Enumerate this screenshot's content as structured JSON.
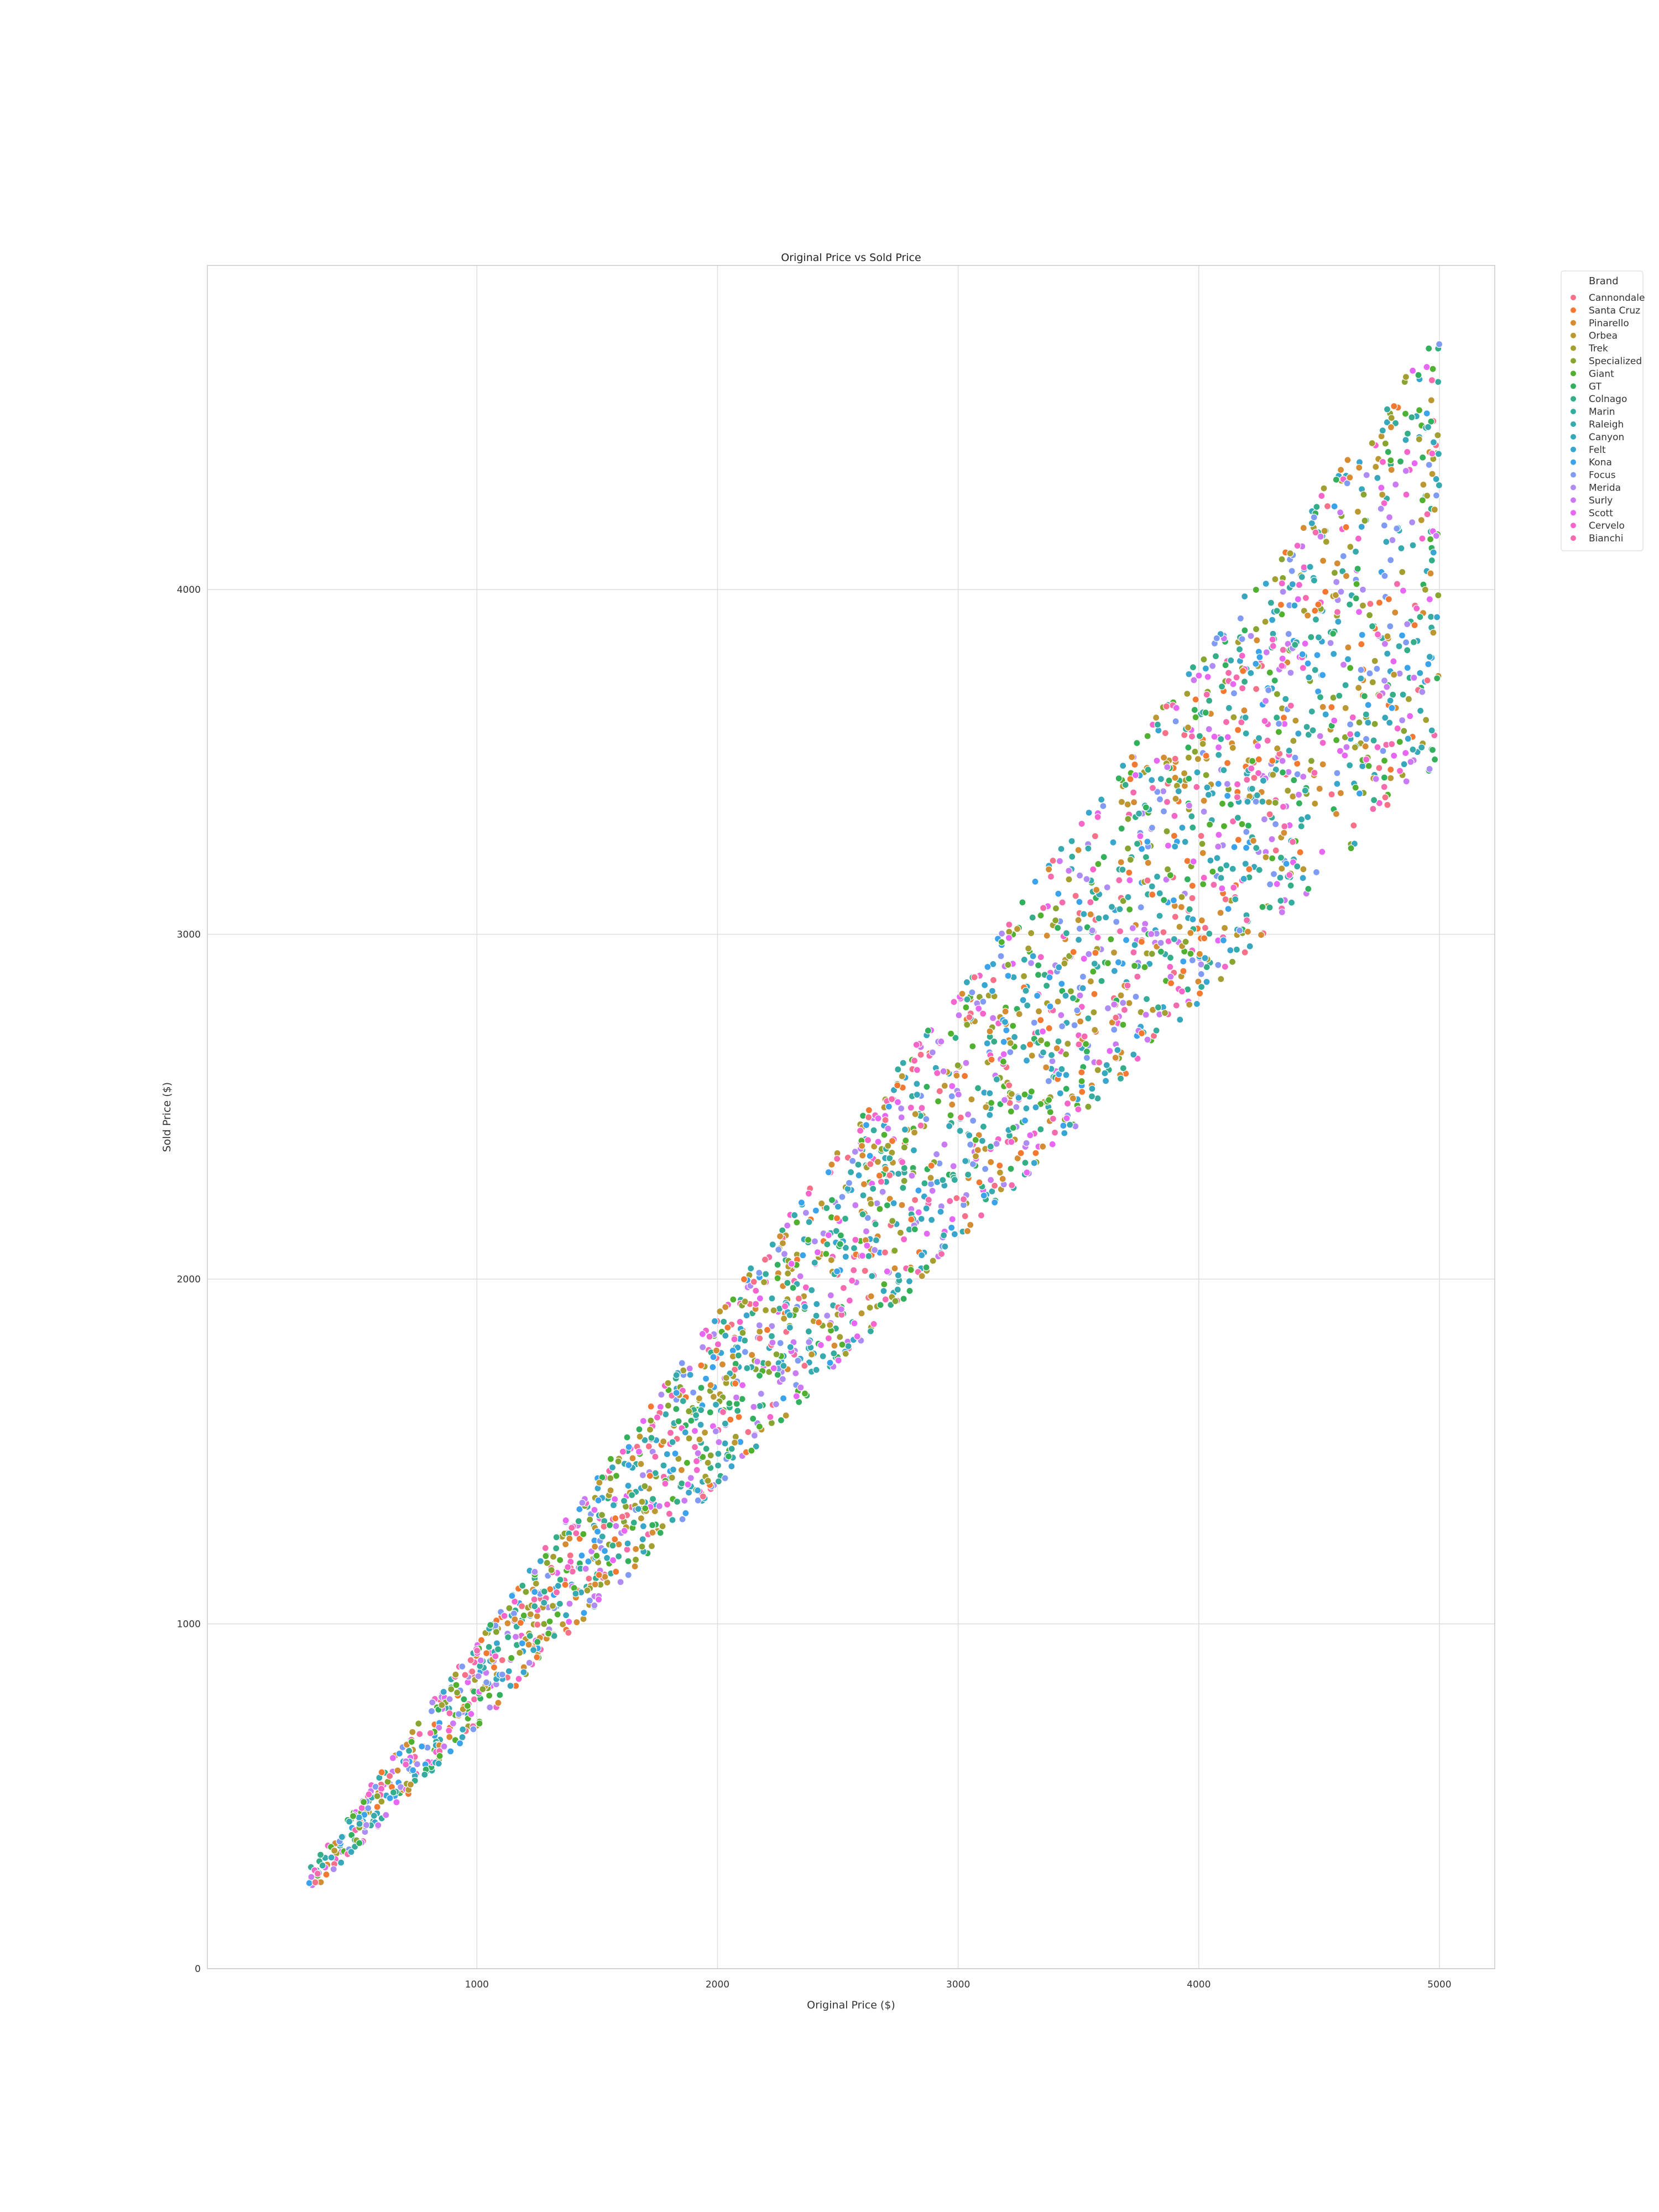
{
  "chart_data": {
    "type": "scatter",
    "title": "Original Price vs Sold Price",
    "xlabel": "Original Price ($)",
    "ylabel": "Sold Price ($)",
    "xlim": [
      -120,
      5230
    ],
    "ylim": [
      0,
      4940
    ],
    "xticks": [
      1000,
      2000,
      3000,
      4000,
      5000
    ],
    "yticks": [
      0,
      1000,
      2000,
      3000,
      4000
    ],
    "grid": true,
    "legend": {
      "title": "Brand",
      "placement": "outside-top-right"
    },
    "series": [
      {
        "name": "Cannondale",
        "color": "#f77189"
      },
      {
        "name": "Santa Cruz",
        "color": "#f37932"
      },
      {
        "name": "Pinarello",
        "color": "#d58c32"
      },
      {
        "name": "Orbea",
        "color": "#bb9832"
      },
      {
        "name": "Trek",
        "color": "#a39f31"
      },
      {
        "name": "Specialized",
        "color": "#88a431"
      },
      {
        "name": "Giant",
        "color": "#50b131"
      },
      {
        "name": "GT",
        "color": "#33b05e"
      },
      {
        "name": "Colnago",
        "color": "#34ae88"
      },
      {
        "name": "Marin",
        "color": "#35ac9e"
      },
      {
        "name": "Raleigh",
        "color": "#36aaad"
      },
      {
        "name": "Canyon",
        "color": "#37a8bc"
      },
      {
        "name": "Felt",
        "color": "#38a6ce"
      },
      {
        "name": "Kona",
        "color": "#3ba3ec"
      },
      {
        "name": "Focus",
        "color": "#809bf4"
      },
      {
        "name": "Merida",
        "color": "#ad8cf4"
      },
      {
        "name": "Surly",
        "color": "#cc7af4"
      },
      {
        "name": "Scott",
        "color": "#e866f4"
      },
      {
        "name": "Cervelo",
        "color": "#f565cc"
      },
      {
        "name": "Bianchi",
        "color": "#f66bad"
      }
    ],
    "point_cloud": {
      "count": 3000,
      "x_range": [
        300,
        5000
      ],
      "sold_to_original_ratio_range": [
        0.7,
        0.95
      ]
    }
  }
}
